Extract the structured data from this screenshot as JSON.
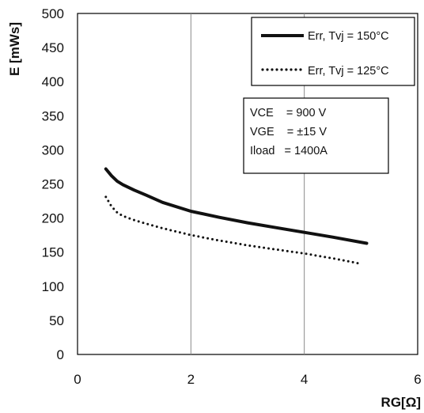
{
  "chart_data": {
    "type": "line",
    "title": "",
    "xlabel": "RG[Ω]",
    "ylabel": "E [mWs]",
    "xlim": [
      0,
      6
    ],
    "ylim": [
      0,
      500
    ],
    "x_ticks": [
      "0",
      "2",
      "4",
      "6"
    ],
    "y_ticks": [
      "0",
      "50",
      "100",
      "150",
      "200",
      "250",
      "300",
      "350",
      "400",
      "450",
      "500"
    ],
    "grid": "vertical-only",
    "legend_position": "top-right",
    "series": [
      {
        "name": "Err, Tvj = 150°C",
        "style": "solid",
        "color": "#111111",
        "x": [
          0.5,
          0.6,
          0.7,
          0.8,
          1.0,
          1.2,
          1.5,
          2.0,
          2.5,
          3.0,
          3.5,
          4.0,
          4.5,
          5.1
        ],
        "y": [
          272,
          262,
          254,
          249,
          241,
          234,
          223,
          210,
          201,
          193,
          186,
          179,
          172,
          163
        ]
      },
      {
        "name": "Err, Tvj = 125°C",
        "style": "dotted",
        "color": "#111111",
        "x": [
          0.5,
          0.6,
          0.7,
          0.8,
          1.0,
          1.2,
          1.5,
          2.0,
          2.5,
          3.0,
          3.5,
          4.0,
          4.5,
          5.0
        ],
        "y": [
          231,
          217,
          208,
          203,
          197,
          192,
          185,
          175,
          167,
          160,
          154,
          148,
          141,
          133
        ]
      }
    ],
    "annotation": {
      "lines": [
        "VCE    = 900 V",
        "VGE    = ±15 V",
        "Iload   = 1400A"
      ]
    }
  }
}
